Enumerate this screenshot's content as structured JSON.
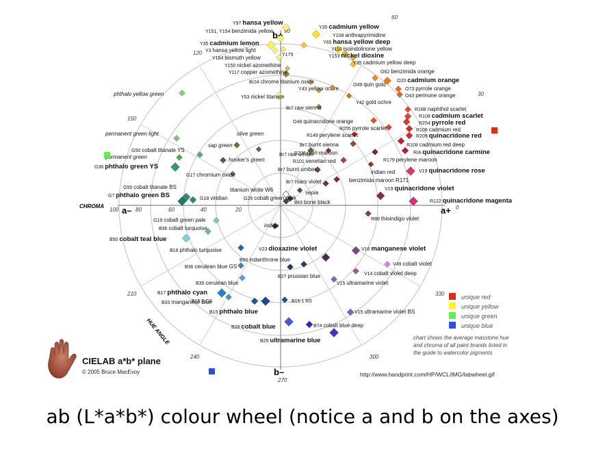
{
  "caption": "ab (L*a*b*) colour wheel (notice a and b on the axes)",
  "diagram": {
    "title": "CIELAB a*b* plane",
    "copyright": "© 2005 Bruce MacEvoy",
    "url": "http://www.handprint.com/HP/WCL/IMG/labwheel.gif",
    "note_lines": [
      "chart shows the average masstone hue",
      "and chroma of all paint brands listed in",
      "the guide to watercolor pigments"
    ],
    "axis_labels": {
      "b_plus": "b+",
      "b_minus": "b–",
      "a_plus": "a+",
      "a_minus": "a–",
      "chroma": "CHROMA",
      "hue_angle": "HUE ANGLE"
    },
    "chroma_ticks": [
      "100",
      "80",
      "60",
      "40",
      "20"
    ],
    "hue_angle_ticks": [
      "0",
      "30",
      "60",
      "90",
      "120",
      "150",
      "210",
      "240",
      "270",
      "300",
      "330"
    ],
    "legend": [
      {
        "label": "unique red",
        "color": "#e02a1c"
      },
      {
        "label": "unique yellow",
        "color": "#fff22a"
      },
      {
        "label": "unique green",
        "color": "#62ee52"
      },
      {
        "label": "unique blue",
        "color": "#2c50e2"
      }
    ],
    "pigments": [
      {
        "label": "Y97",
        "bold": "hansa yellow",
        "rest": "",
        "color": "#fff27a"
      },
      {
        "label": "Y151, Y154",
        "bold": "",
        "rest": "benzimida yellow",
        "color": "#fff64e"
      },
      {
        "label": "Y35",
        "bold": "cadmium yellow",
        "rest": "",
        "color": "#ffe02a"
      },
      {
        "label": "Y108",
        "bold": "",
        "rest": "anthrapyrimidine",
        "color": "#f9c436"
      },
      {
        "label": "Y65",
        "bold": "hansa yellow deep",
        "rest": "",
        "color": "#ffd11c"
      },
      {
        "label": "Y110",
        "bold": "",
        "rest": "isoindolinone yellow",
        "color": "#f6c21a"
      },
      {
        "label": "Y153",
        "bold": "nickel dioxine",
        "rest": "",
        "color": "#efb21e"
      },
      {
        "label": "Y35",
        "bold": "",
        "rest": "cadmium yellow deep",
        "color": "#fdb916"
      },
      {
        "label": "Y35",
        "bold": "cadmium lemon",
        "rest": "",
        "color": "#fbf447"
      },
      {
        "label": "Y3",
        "bold": "",
        "rest": "hansa yellow light",
        "color": "#fbf767"
      },
      {
        "label": "Y184",
        "bold": "",
        "rest": "bismuth yellow",
        "color": "#f6f48a"
      },
      {
        "label": "Y175",
        "bold": "",
        "rest": "",
        "color": "#f8ed6e"
      },
      {
        "label": "Y150",
        "bold": "",
        "rest": "nickel azomethine",
        "color": "#d8c04c"
      },
      {
        "label": "Y117",
        "bold": "",
        "rest": "copper azomethine",
        "color": "#98862e"
      },
      {
        "label": "Br24",
        "bold": "",
        "rest": "chrome titanium oxide",
        "color": "#e4c585"
      },
      {
        "label": "Y43",
        "bold": "",
        "rest": "yellow ochre",
        "color": "#cf9b3e"
      },
      {
        "label": "Y53",
        "bold": "",
        "rest": "nickel titanate",
        "color": "#f3f2b8"
      },
      {
        "label": "O49",
        "bold": "",
        "rest": "quin gold",
        "color": "#d6891c"
      },
      {
        "label": "Y42",
        "bold": "",
        "rest": "gold ochre",
        "color": "#c67f1e"
      },
      {
        "label": "Br7",
        "bold": "",
        "rest": "raw sienna",
        "color": "#b57b32"
      },
      {
        "label": "O62",
        "bold": "",
        "rest": "benzimida orange",
        "color": "#f18a1e"
      },
      {
        "label": "O20",
        "bold": "cadmium orange",
        "rest": "",
        "color": "#f57a1a"
      },
      {
        "label": "O73",
        "bold": "",
        "rest": "pyrrole orange",
        "color": "#ee6a1c"
      },
      {
        "label": "O43",
        "bold": "",
        "rest": "perinone orange",
        "color": "#ea6220"
      },
      {
        "label": "R188",
        "bold": "",
        "rest": "naphthol scarlet",
        "color": "#e5482a"
      },
      {
        "label": "R108",
        "bold": "cadmium scarlet",
        "rest": "",
        "color": "#e6462a"
      },
      {
        "label": "R254",
        "bold": "pyrrole red",
        "rest": "",
        "color": "#e33328"
      },
      {
        "label": "R108",
        "bold": "",
        "rest": "cadmium red",
        "color": "#d62a2a"
      },
      {
        "label": "R209",
        "bold": "quinacridone red",
        "rest": "",
        "color": "#d22a3a"
      },
      {
        "label": "O48",
        "bold": "",
        "rest": "quinacridone orange",
        "color": "#d45a2a"
      },
      {
        "label": "R255",
        "bold": "",
        "rest": "pyrrole scarlet",
        "color": "#e4402a"
      },
      {
        "label": "R149",
        "bold": "",
        "rest": "perylene scarlet",
        "color": "#c62d22"
      },
      {
        "label": "Br7",
        "bold": "",
        "rest": "burnt sienna",
        "color": "#9d4a24"
      },
      {
        "label": "R206",
        "bold": "",
        "rest": "quin maroon",
        "color": "#8e2e2e"
      },
      {
        "label": "R108",
        "bold": "",
        "rest": "cadmium red deep",
        "color": "#b52230"
      },
      {
        "label": "R/A",
        "bold": "quinacridone carmine",
        "rest": "",
        "color": "#b4203a"
      },
      {
        "label": "R179",
        "bold": "",
        "rest": "perylene maroon",
        "color": "#7a2a2a"
      },
      {
        "label": "V19",
        "bold": "quinacridone rose",
        "rest": "",
        "color": "#d43a6a"
      },
      {
        "label": "Br7",
        "bold": "",
        "rest": "raw umber",
        "color": "#6a5a3a"
      },
      {
        "label": "R101",
        "bold": "",
        "rest": "venetian red",
        "color": "#a34a3a"
      },
      {
        "label": "Br7",
        "bold": "",
        "rest": "burnt umber",
        "color": "#6a4a30"
      },
      {
        "label": "",
        "bold": "",
        "rest": "indian red",
        "color": "#8a3a30"
      },
      {
        "label": "",
        "bold": "",
        "rest": "benzimida maroon R171",
        "color": "#7e2e3a"
      },
      {
        "label": "Br7",
        "bold": "",
        "rest": "mars violet",
        "color": "#6a3a3a"
      },
      {
        "label": "",
        "bold": "",
        "rest": "sepia",
        "color": "#5a4a3a"
      },
      {
        "label": "V19",
        "bold": "quinacridone violet",
        "rest": "",
        "color": "#8a2a40"
      },
      {
        "label": "R122",
        "bold": "quinacridone magenta",
        "rest": "",
        "color": "#d2327a"
      },
      {
        "label": "R88",
        "bold": "",
        "rest": "thioindigo violet",
        "color": "#8a3a5a"
      },
      {
        "label": "Bk9",
        "bold": "",
        "rest": "bone black",
        "color": "#403a3a"
      },
      {
        "label": "",
        "bold": "",
        "rest": "titanium white W6",
        "color": "#ffffff"
      },
      {
        "label": "G26",
        "bold": "",
        "rest": "cobalt green dark",
        "color": "#3a4a44"
      },
      {
        "label": "",
        "bold": "",
        "rest": "olive green",
        "color": "#5a6a3a"
      },
      {
        "label": "",
        "bold": "",
        "rest": "sap green",
        "color": "#5a7a3a"
      },
      {
        "label": "",
        "bold": "",
        "rest": "hooker's green",
        "color": "#3a6a4a"
      },
      {
        "label": "",
        "bold": "",
        "rest": "phthalo yellow green",
        "color": "#8ad07a"
      },
      {
        "label": "",
        "bold": "",
        "rest": "permanent green light",
        "color": "#82c872"
      },
      {
        "label": "G50",
        "bold": "",
        "rest": "cobalt titanate YS",
        "color": "#5aaa7a"
      },
      {
        "label": "",
        "bold": "",
        "rest": "permanent green",
        "color": "#4aa860"
      },
      {
        "label": "G36",
        "bold": "phthalo green YS",
        "rest": "",
        "color": "#2e9a62"
      },
      {
        "label": "G17",
        "bold": "",
        "rest": "chromium oxide",
        "color": "#5a8a5a"
      },
      {
        "label": "G50",
        "bold": "",
        "rest": "cobalt titanate BS",
        "color": "#3a8a7a"
      },
      {
        "label": "G7",
        "bold": "phthalo green BS",
        "rest": "",
        "color": "#1e7a6a"
      },
      {
        "label": "G18",
        "bold": "",
        "rest": "viridian",
        "color": "#2a8a7a"
      },
      {
        "label": "G19",
        "bold": "",
        "rest": "cobalt green pale",
        "color": "#8ac8b0"
      },
      {
        "label": "B36",
        "bold": "",
        "rest": "cobalt turquoise",
        "color": "#6ab8b0"
      },
      {
        "label": "B50",
        "bold": "cobalt teal blue",
        "rest": "",
        "color": "#7ad4e0"
      },
      {
        "label": "",
        "bold": "",
        "rest": "indigo",
        "color": "#2a3a4a"
      },
      {
        "label": "B16",
        "bold": "",
        "rest": "phthalo turquoise",
        "color": "#1e6a8a"
      },
      {
        "label": "V23",
        "bold": "dioxazine violet",
        "rest": "",
        "color": "#4a2a5a"
      },
      {
        "label": "B60",
        "bold": "",
        "rest": "indanthrone blue",
        "color": "#2a3a6a"
      },
      {
        "label": "B36",
        "bold": "",
        "rest": "cerulean blue GS",
        "color": "#3a8ab0"
      },
      {
        "label": "B27",
        "bold": "",
        "rest": "prussian blue",
        "color": "#1e3a5a"
      },
      {
        "label": "V16",
        "bold": "manganese violet",
        "rest": "",
        "color": "#7a4a8a"
      },
      {
        "label": "V49",
        "bold": "",
        "rest": "cobalt violet",
        "color": "#d08ad8"
      },
      {
        "label": "V14",
        "bold": "",
        "rest": "cobalt violet deep",
        "color": "#9a5a9a"
      },
      {
        "label": "V15",
        "bold": "",
        "rest": "ultramarine violet",
        "color": "#7a6ab0"
      },
      {
        "label": "B35",
        "bold": "",
        "rest": "cerulean blue",
        "color": "#5aa0d0"
      },
      {
        "label": "B17",
        "bold": "phthalo cyan",
        "rest": "",
        "color": "#2a80c0"
      },
      {
        "label": "B33",
        "bold": "",
        "rest": "manganese blue",
        "color": "#3a9ac8"
      },
      {
        "label": "B15:3 GS",
        "bold": "",
        "rest": "",
        "color": "#1e5a9a"
      },
      {
        "label": "B15",
        "bold": "phthalo blue",
        "rest": "",
        "color": "#1e4a8a"
      },
      {
        "label": "B15:1 RS",
        "bold": "",
        "rest": "",
        "color": "#2a4a8a"
      },
      {
        "label": "V15",
        "bold": "",
        "rest": "ultramarine violet BS",
        "color": "#6a6ad0"
      },
      {
        "label": "B28",
        "bold": "cobalt blue",
        "rest": "",
        "color": "#4a5ad0"
      },
      {
        "label": "B74",
        "bold": "",
        "rest": "cobalt blue deep",
        "color": "#2a2ac8"
      },
      {
        "label": "B29",
        "bold": "ultramarine blue",
        "rest": "",
        "color": "#3a3ab8"
      }
    ]
  }
}
